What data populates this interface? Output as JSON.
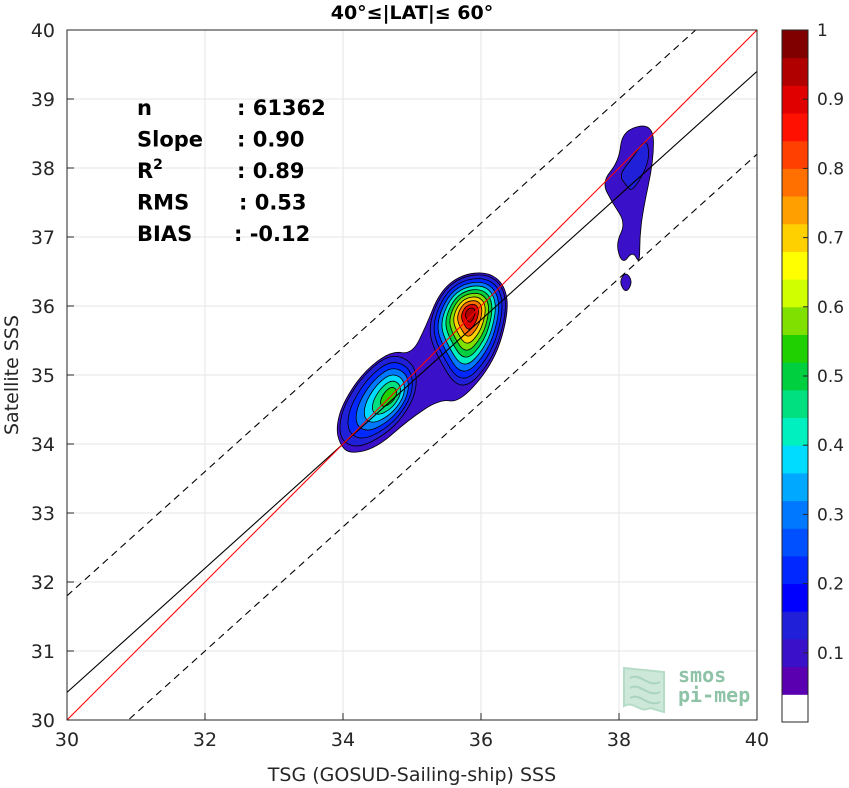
{
  "chart_data": {
    "type": "heatmap",
    "title": "40°≤|LAT|≤ 60°",
    "xlabel": "TSG (GOSUD-Sailing-ship) SSS",
    "ylabel": "Satellite SSS",
    "xlim": [
      30,
      40
    ],
    "ylim": [
      30,
      40
    ],
    "xticks": [
      "30",
      "32",
      "34",
      "36",
      "38",
      "40"
    ],
    "yticks": [
      "30",
      "31",
      "32",
      "33",
      "34",
      "35",
      "36",
      "37",
      "38",
      "39",
      "40"
    ],
    "grid": true,
    "stats": [
      {
        "label": "n",
        "value": ": 61362"
      },
      {
        "label": "Slope",
        "value": ": 0.90"
      },
      {
        "label": "R",
        "sup": "2",
        "value": ": 0.89"
      },
      {
        "label": "RMS",
        "value": ": 0.53"
      },
      {
        "label": "BIAS",
        "value": ": -0.12"
      }
    ],
    "lines": {
      "identity": {
        "color": "#ff0000",
        "slope": 1.0,
        "intercept": 0.0
      },
      "fit": {
        "color": "#000000",
        "slope": 0.9,
        "intercept": 3.4
      },
      "fit_upper": {
        "style": "dashed",
        "slope": 0.9,
        "intercept": 4.8
      },
      "fit_lower": {
        "style": "dashed",
        "slope": 0.9,
        "intercept": 2.2
      }
    },
    "density_peaks": [
      {
        "x": 35.85,
        "y": 35.9,
        "value": 1.0
      },
      {
        "x": 34.7,
        "y": 34.7,
        "value": 0.62
      },
      {
        "x": 38.15,
        "y": 37.95,
        "value": 0.12
      }
    ],
    "colorbar": {
      "range": [
        0,
        1
      ],
      "ticks": [
        "0.1",
        "0.2",
        "0.3",
        "0.4",
        "0.5",
        "0.6",
        "0.7",
        "0.8",
        "0.9",
        "1"
      ],
      "colors": [
        "#ffffff",
        "#5b00b0",
        "#3a10c8",
        "#2020d8",
        "#0000ff",
        "#0028ff",
        "#0050ff",
        "#0078ff",
        "#00a8ff",
        "#00dcff",
        "#00f0c0",
        "#00e080",
        "#00d040",
        "#20d000",
        "#80e000",
        "#d0ff00",
        "#ffff00",
        "#ffd000",
        "#ffa000",
        "#ff7000",
        "#ff4000",
        "#ff1000",
        "#e00000",
        "#b00000",
        "#800000"
      ]
    }
  },
  "logo": {
    "line1": "smos",
    "line2": "pi-mep"
  }
}
